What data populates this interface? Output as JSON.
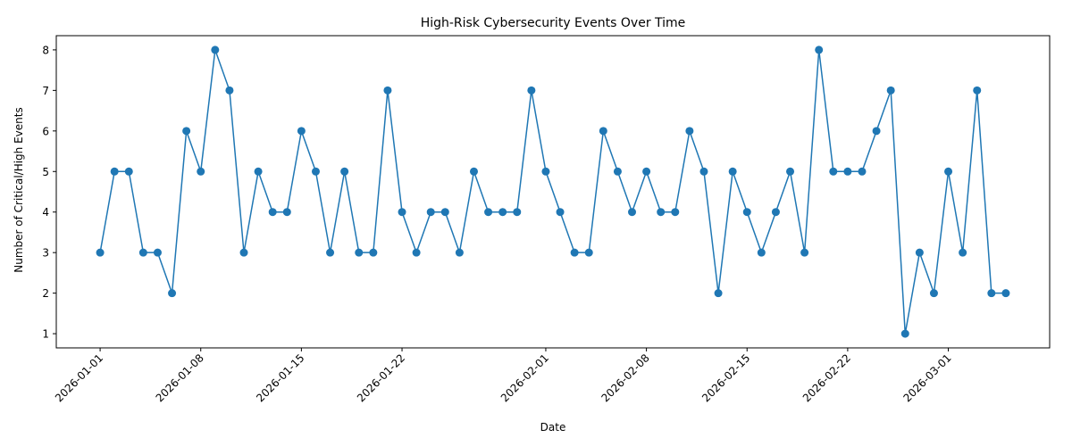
{
  "chart_data": {
    "type": "line",
    "title": "High-Risk Cybersecurity Events Over Time",
    "xlabel": "Date",
    "ylabel": "Number of Critical/High Events",
    "x_start": "2026-01-01",
    "x": [
      "2026-01-01",
      "2026-01-02",
      "2026-01-03",
      "2026-01-04",
      "2026-01-05",
      "2026-01-06",
      "2026-01-07",
      "2026-01-08",
      "2026-01-09",
      "2026-01-10",
      "2026-01-11",
      "2026-01-12",
      "2026-01-13",
      "2026-01-14",
      "2026-01-15",
      "2026-01-16",
      "2026-01-17",
      "2026-01-18",
      "2026-01-19",
      "2026-01-20",
      "2026-01-21",
      "2026-01-22",
      "2026-01-23",
      "2026-01-24",
      "2026-01-25",
      "2026-01-26",
      "2026-01-27",
      "2026-01-28",
      "2026-01-29",
      "2026-01-30",
      "2026-01-31",
      "2026-02-01",
      "2026-02-02",
      "2026-02-03",
      "2026-02-04",
      "2026-02-05",
      "2026-02-06",
      "2026-02-07",
      "2026-02-08",
      "2026-02-09",
      "2026-02-10",
      "2026-02-11",
      "2026-02-12",
      "2026-02-13",
      "2026-02-14",
      "2026-02-15",
      "2026-02-16",
      "2026-02-17",
      "2026-02-18",
      "2026-02-19",
      "2026-02-20",
      "2026-02-21",
      "2026-02-22",
      "2026-02-23",
      "2026-02-24",
      "2026-02-25",
      "2026-02-26",
      "2026-02-27",
      "2026-02-28",
      "2026-03-01",
      "2026-03-02",
      "2026-03-03",
      "2026-03-04",
      "2026-03-05"
    ],
    "series": [
      {
        "name": "",
        "values": [
          3,
          5,
          5,
          3,
          3,
          2,
          6,
          5,
          8,
          7,
          3,
          5,
          4,
          4,
          6,
          5,
          3,
          5,
          3,
          3,
          7,
          4,
          3,
          4,
          4,
          3,
          5,
          4,
          4,
          4,
          7,
          5,
          4,
          3,
          3,
          6,
          5,
          4,
          5,
          4,
          4,
          6,
          5,
          2,
          5,
          4,
          3,
          4,
          5,
          3,
          8,
          5,
          5,
          5,
          6,
          7,
          1,
          3,
          2,
          5,
          3,
          7,
          2,
          2
        ]
      }
    ],
    "xticks": [
      "2026-01-01",
      "2026-01-08",
      "2026-01-15",
      "2026-01-22",
      "2026-02-01",
      "2026-02-08",
      "2026-02-15",
      "2026-02-22",
      "2026-03-01"
    ],
    "yticks": [
      1,
      2,
      3,
      4,
      5,
      6,
      7,
      8
    ],
    "ylim": [
      0.65,
      8.35
    ],
    "color": "#1f77b4",
    "grid": false,
    "marker": "circle"
  }
}
